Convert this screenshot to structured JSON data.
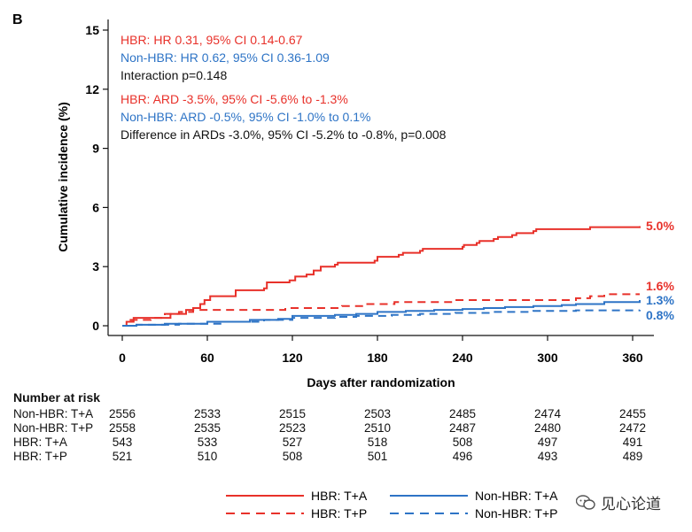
{
  "figure": {
    "panel_label": "B"
  },
  "annotations": [
    {
      "text": "HBR: HR 0.31, 95% CI 0.14-0.67",
      "color": "#e8312a"
    },
    {
      "text": "Non-HBR: HR 0.62, 95% CI 0.36-1.09",
      "color": "#2e74c6"
    },
    {
      "text": "Interaction p=0.148",
      "color": "#111111"
    },
    {
      "text": "HBR: ARD -3.5%, 95% CI -5.6% to -1.3%",
      "color": "#e8312a"
    },
    {
      "text": "Non-HBR: ARD -0.5%, 95% CI -1.0% to 0.1%",
      "color": "#2e74c6"
    },
    {
      "text": "Difference in ARDs -3.0%, 95% CI -5.2% to -0.8%, p=0.008",
      "color": "#111111"
    }
  ],
  "chart_data": {
    "type": "line",
    "title": "",
    "xlabel": "Days after randomization",
    "ylabel": "Cumulative incidence (%)",
    "xlim": [
      0,
      365
    ],
    "ylim": [
      0,
      15
    ],
    "xticks": [
      0,
      60,
      120,
      180,
      240,
      300,
      360
    ],
    "yticks": [
      0,
      3,
      6,
      9,
      12,
      15
    ],
    "grid": false,
    "legend_position": "bottom",
    "series": [
      {
        "name": "HBR: T+A",
        "color": "#e8312a",
        "dash": "solid",
        "end_label": "5.0%",
        "points": [
          [
            0,
            0
          ],
          [
            3,
            0.2
          ],
          [
            8,
            0.4
          ],
          [
            30,
            0.4
          ],
          [
            34,
            0.6
          ],
          [
            45,
            0.8
          ],
          [
            50,
            0.9
          ],
          [
            55,
            1.1
          ],
          [
            58,
            1.3
          ],
          [
            62,
            1.5
          ],
          [
            78,
            1.5
          ],
          [
            80,
            1.8
          ],
          [
            100,
            1.9
          ],
          [
            102,
            2.2
          ],
          [
            118,
            2.3
          ],
          [
            122,
            2.5
          ],
          [
            130,
            2.6
          ],
          [
            135,
            2.8
          ],
          [
            140,
            3.0
          ],
          [
            150,
            3.1
          ],
          [
            152,
            3.2
          ],
          [
            178,
            3.3
          ],
          [
            180,
            3.5
          ],
          [
            195,
            3.6
          ],
          [
            198,
            3.7
          ],
          [
            210,
            3.8
          ],
          [
            212,
            3.9
          ],
          [
            240,
            4.0
          ],
          [
            241,
            4.1
          ],
          [
            250,
            4.2
          ],
          [
            252,
            4.3
          ],
          [
            262,
            4.4
          ],
          [
            265,
            4.5
          ],
          [
            275,
            4.6
          ],
          [
            278,
            4.7
          ],
          [
            290,
            4.8
          ],
          [
            292,
            4.9
          ],
          [
            330,
            5.0
          ],
          [
            365,
            5.05
          ]
        ]
      },
      {
        "name": "HBR: T+P",
        "color": "#e8312a",
        "dash": "dashed",
        "end_label": "1.6%",
        "points": [
          [
            0,
            0
          ],
          [
            5,
            0.3
          ],
          [
            20,
            0.4
          ],
          [
            30,
            0.6
          ],
          [
            40,
            0.7
          ],
          [
            50,
            0.8
          ],
          [
            110,
            0.8
          ],
          [
            115,
            0.9
          ],
          [
            150,
            0.9
          ],
          [
            155,
            1.0
          ],
          [
            170,
            1.0
          ],
          [
            172,
            1.1
          ],
          [
            190,
            1.1
          ],
          [
            192,
            1.2
          ],
          [
            230,
            1.2
          ],
          [
            232,
            1.3
          ],
          [
            300,
            1.3
          ],
          [
            320,
            1.4
          ],
          [
            330,
            1.5
          ],
          [
            340,
            1.6
          ],
          [
            365,
            1.6
          ]
        ]
      },
      {
        "name": "Non-HBR: T+A",
        "color": "#2e74c6",
        "dash": "solid",
        "end_label": "1.3%",
        "points": [
          [
            0,
            0
          ],
          [
            10,
            0.05
          ],
          [
            30,
            0.1
          ],
          [
            60,
            0.2
          ],
          [
            90,
            0.3
          ],
          [
            110,
            0.35
          ],
          [
            120,
            0.5
          ],
          [
            150,
            0.55
          ],
          [
            165,
            0.6
          ],
          [
            180,
            0.7
          ],
          [
            200,
            0.75
          ],
          [
            220,
            0.8
          ],
          [
            240,
            0.85
          ],
          [
            255,
            0.9
          ],
          [
            270,
            0.95
          ],
          [
            290,
            1.0
          ],
          [
            310,
            1.05
          ],
          [
            320,
            1.1
          ],
          [
            340,
            1.2
          ],
          [
            365,
            1.3
          ]
        ]
      },
      {
        "name": "Non-HBR: T+P",
        "color": "#2e74c6",
        "dash": "dashed",
        "end_label": "0.8%",
        "points": [
          [
            0,
            0
          ],
          [
            10,
            0.05
          ],
          [
            40,
            0.1
          ],
          [
            70,
            0.2
          ],
          [
            100,
            0.3
          ],
          [
            120,
            0.4
          ],
          [
            150,
            0.45
          ],
          [
            165,
            0.5
          ],
          [
            190,
            0.55
          ],
          [
            210,
            0.6
          ],
          [
            235,
            0.65
          ],
          [
            260,
            0.7
          ],
          [
            290,
            0.75
          ],
          [
            320,
            0.78
          ],
          [
            365,
            0.8
          ]
        ]
      }
    ],
    "risk_table": {
      "title": "Number at risk",
      "timepoints": [
        0,
        60,
        120,
        180,
        240,
        300,
        360
      ],
      "rows": [
        {
          "label": "Non-HBR: T+A",
          "values": [
            "2556",
            "2533",
            "2515",
            "2503",
            "2485",
            "2474",
            "2455"
          ]
        },
        {
          "label": "Non-HBR: T+P",
          "values": [
            "2558",
            "2535",
            "2523",
            "2510",
            "2487",
            "2480",
            "2472"
          ]
        },
        {
          "label": "HBR: T+A",
          "values": [
            "543",
            "533",
            "527",
            "518",
            "508",
            "497",
            "491"
          ]
        },
        {
          "label": "HBR: T+P",
          "values": [
            "521",
            "510",
            "508",
            "501",
            "496",
            "493",
            "489"
          ]
        }
      ]
    }
  },
  "watermark": {
    "text": "见心论道"
  }
}
